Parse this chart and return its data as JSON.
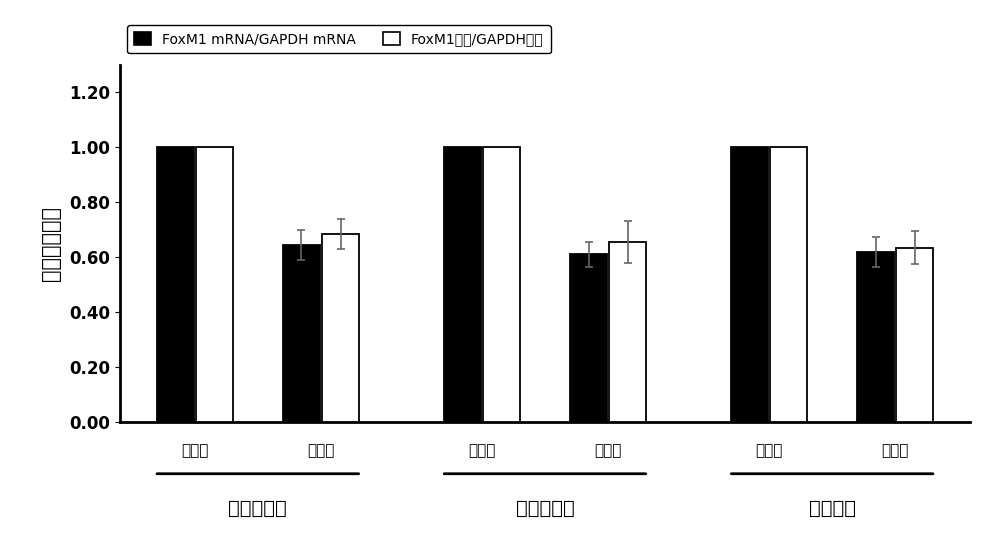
{
  "title": "",
  "ylabel": "相对表达水平",
  "ylim": [
    0,
    1.3
  ],
  "yticks": [
    0.0,
    0.2,
    0.4,
    0.6,
    0.8,
    1.0,
    1.2
  ],
  "groups": [
    "宫颈癌细胞",
    "乳腺癌细胞",
    "肺癌细胞"
  ],
  "subgroups": [
    "对照组",
    "给药组"
  ],
  "mRNA_values": [
    1.0,
    0.645,
    1.0,
    0.61,
    1.0,
    0.62
  ],
  "protein_values": [
    1.0,
    0.685,
    1.0,
    0.655,
    1.0,
    0.635
  ],
  "mRNA_errors": [
    0.0,
    0.055,
    0.0,
    0.045,
    0.0,
    0.055
  ],
  "protein_errors": [
    0.0,
    0.055,
    0.0,
    0.075,
    0.0,
    0.06
  ],
  "bar_color_mrna": "#000000",
  "bar_color_protein": "#ffffff",
  "bar_edgecolor": "#000000",
  "legend_mrna": "FoxM1 mRNA/GAPDH mRNA",
  "legend_protein": "FoxM1蛋白/GAPDH蛋白",
  "background_color": "#ffffff",
  "bar_width": 0.32,
  "errorbar_color": "#666666",
  "errorbar_capsize": 3,
  "errorbar_linewidth": 1.2,
  "font_size_ylabel": 15,
  "font_size_ticks": 12,
  "font_size_legend": 12,
  "font_size_group_labels": 14,
  "font_size_subgroup_labels": 11
}
